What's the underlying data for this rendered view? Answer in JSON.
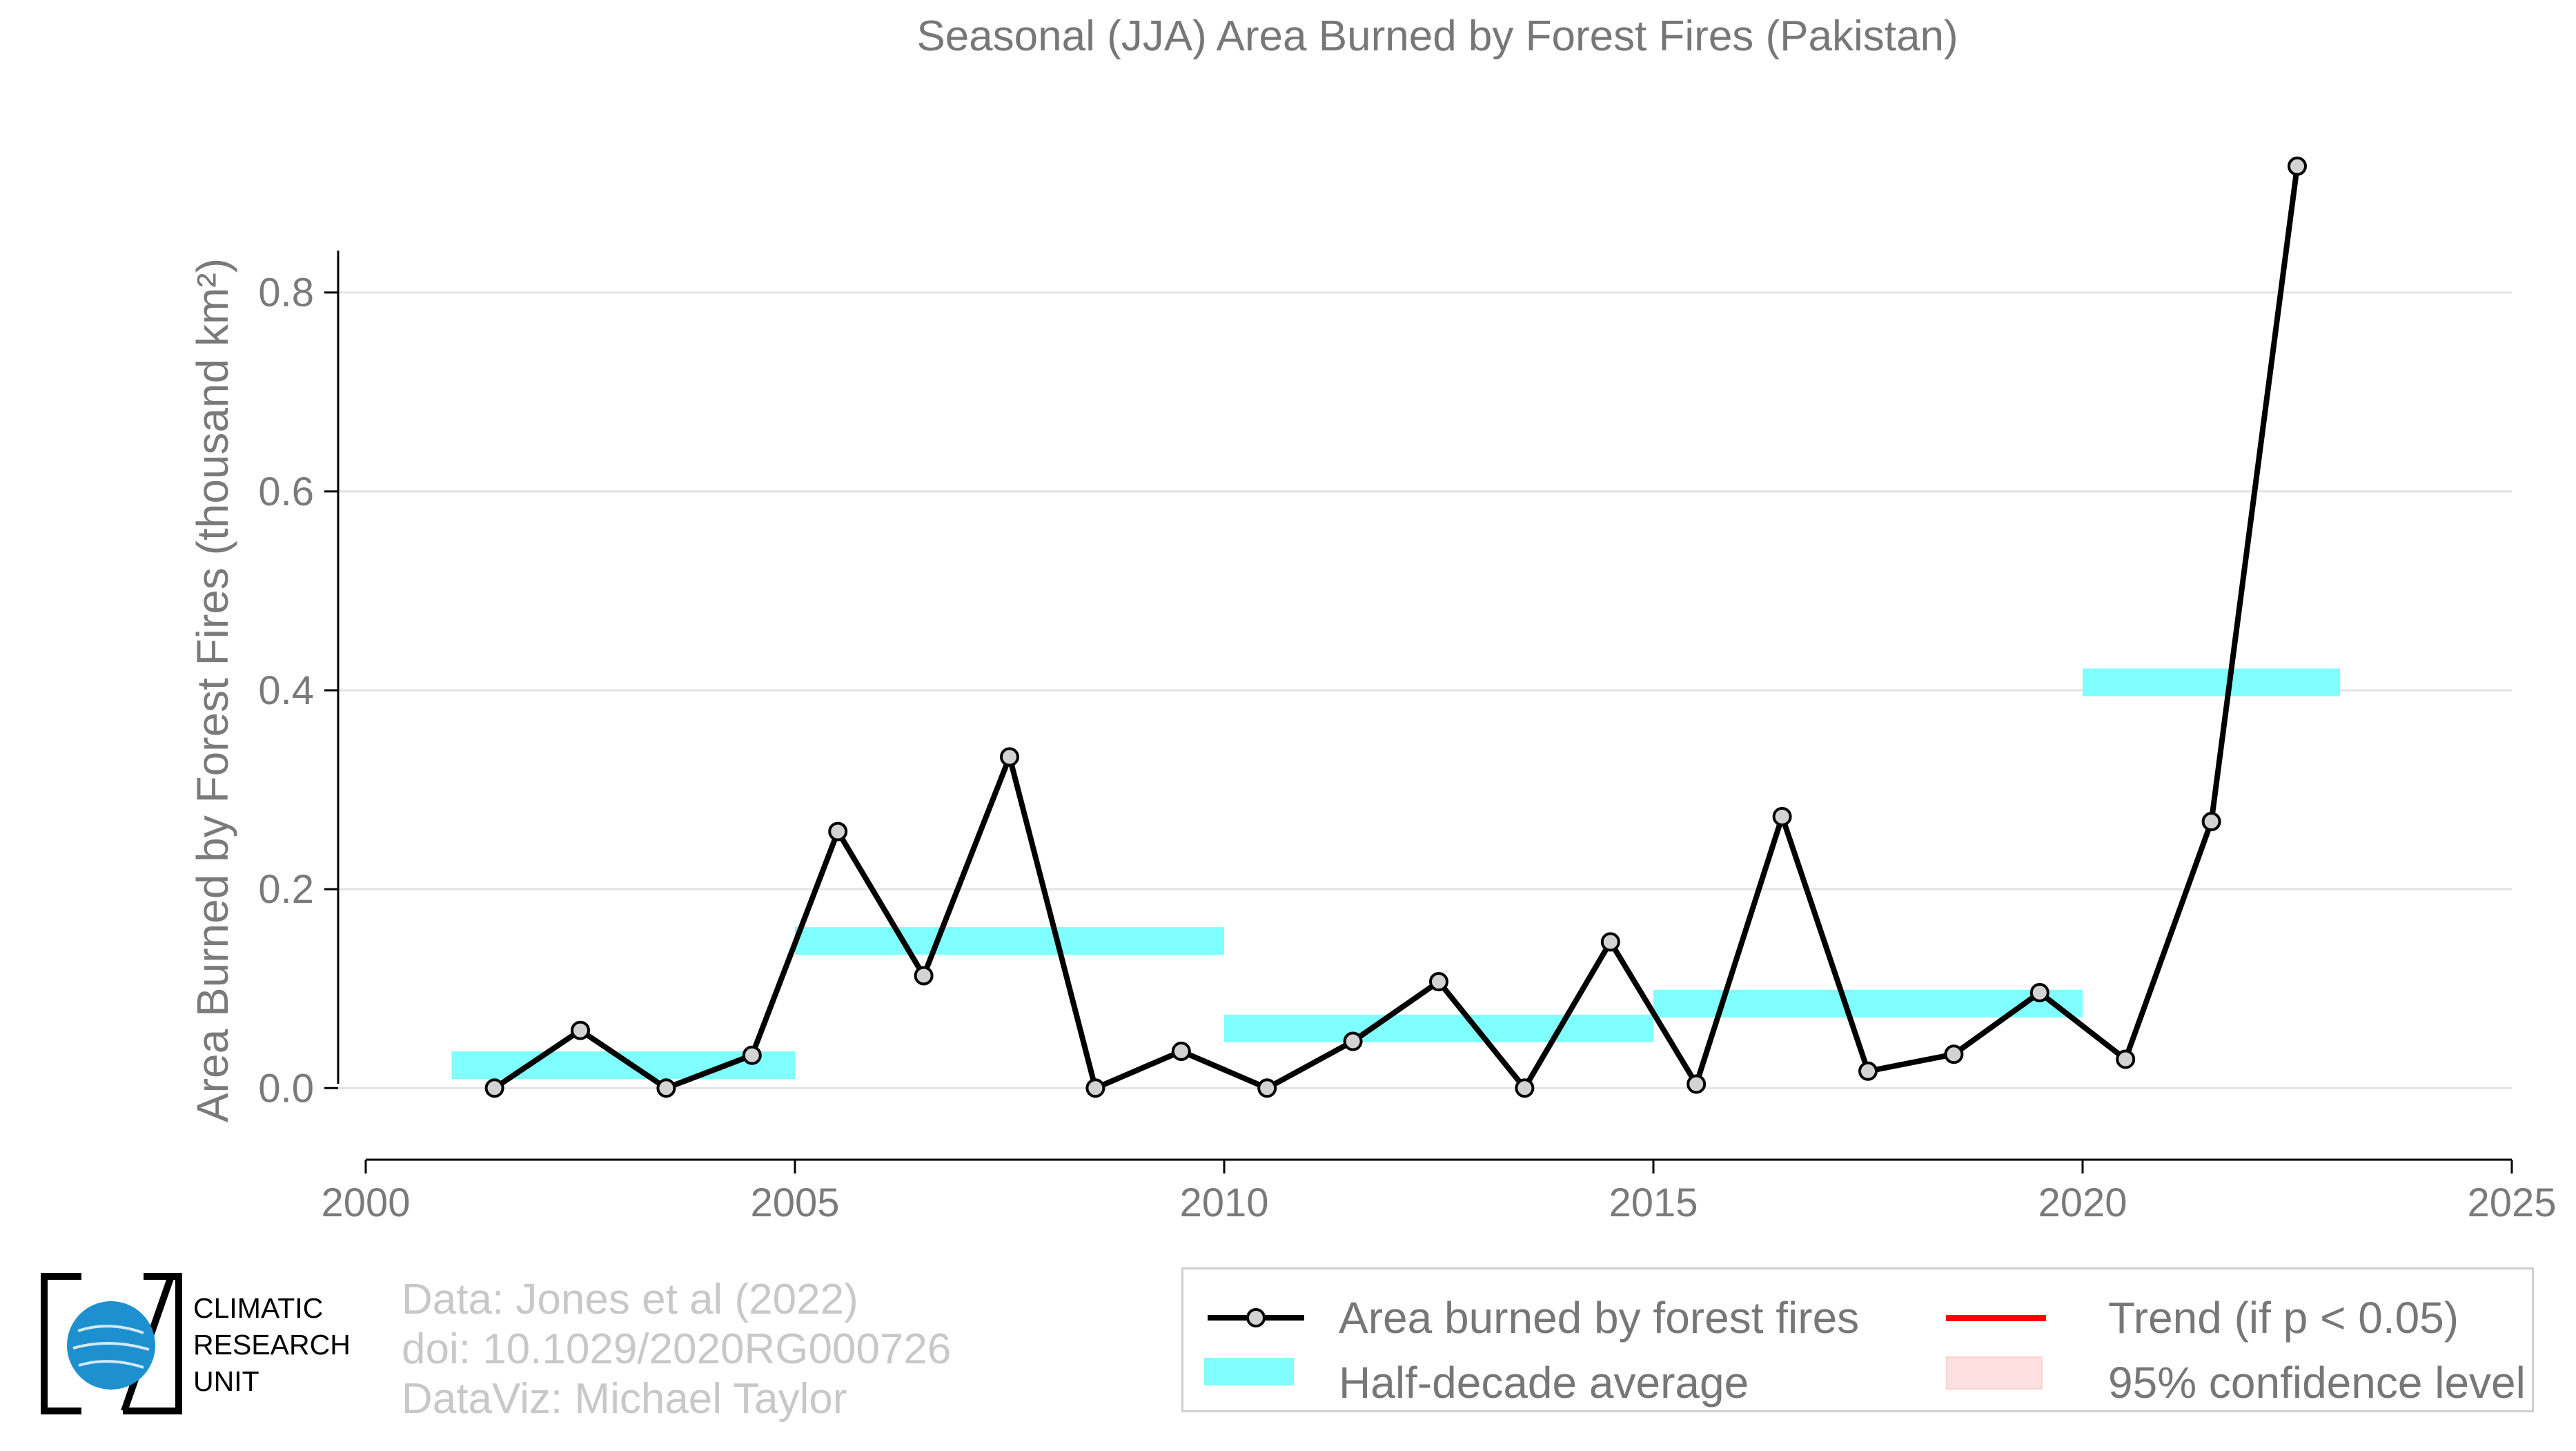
{
  "chart_data": {
    "type": "line",
    "title": "Seasonal (JJA) Area Burned by Forest Fires (Pakistan)",
    "ylabel": "Area Burned by Forest Fires (thousand km²)",
    "xlabel": "",
    "xlim": [
      2000,
      2025
    ],
    "ylim": [
      -0.072,
      0.99
    ],
    "x_ticks": [
      2000,
      2005,
      2010,
      2015,
      2020,
      2025
    ],
    "y_ticks": [
      0.0,
      0.2,
      0.4,
      0.6,
      0.8
    ],
    "x_tick_labels": [
      "2000",
      "2005",
      "2010",
      "2015",
      "2020",
      "2025"
    ],
    "y_tick_labels": [
      "0.0",
      "0.2",
      "0.4",
      "0.6",
      "0.8"
    ],
    "grid": "horizontal",
    "series": [
      {
        "name": "Area burned by forest fires",
        "color": "#000000",
        "marker_fill": "#d3d3d3",
        "x": [
          2001.5,
          2002.5,
          2003.5,
          2004.5,
          2005.5,
          2006.5,
          2007.5,
          2008.5,
          2009.5,
          2010.5,
          2011.5,
          2012.5,
          2013.5,
          2014.5,
          2015.5,
          2016.5,
          2017.5,
          2018.5,
          2019.5,
          2020.5,
          2021.5,
          2022.5
        ],
        "y": [
          0.0,
          0.058,
          0.0,
          0.033,
          0.258,
          0.113,
          0.333,
          0.0,
          0.037,
          0.0,
          0.047,
          0.107,
          0.0,
          0.147,
          0.004,
          0.273,
          0.017,
          0.034,
          0.096,
          0.029,
          0.268,
          0.927
        ]
      }
    ],
    "half_decade_average": {
      "name": "Half-decade average",
      "color": "#7fffff",
      "segments": [
        {
          "x0": 2001,
          "x1": 2005,
          "y": 0.023
        },
        {
          "x0": 2005,
          "x1": 2010,
          "y": 0.148
        },
        {
          "x0": 2010,
          "x1": 2015,
          "y": 0.06
        },
        {
          "x0": 2015,
          "x1": 2020,
          "y": 0.085
        },
        {
          "x0": 2020,
          "x1": 2023,
          "y": 0.408
        }
      ]
    },
    "legend": {
      "position": "bottom-right",
      "entries": [
        {
          "label": "Area burned by forest fires",
          "key": "line-marker",
          "color": "#000000"
        },
        {
          "label": "Half-decade average",
          "key": "band",
          "color": "#7fffff"
        },
        {
          "label": "Trend (if p < 0.05)",
          "key": "line",
          "color": "#ff0000"
        },
        {
          "label": "95% confidence level",
          "key": "band",
          "color": "#ffe0e0"
        }
      ]
    }
  },
  "credits": {
    "line1": "Data: Jones et al (2022)",
    "line2": "doi: 10.1029/2020RG000726",
    "line3": "DataViz: Michael Taylor"
  },
  "logo": {
    "line1": "CLIMATIC",
    "line2": "RESEARCH",
    "line3": "UNIT",
    "globe_color": "#1e90d0"
  }
}
